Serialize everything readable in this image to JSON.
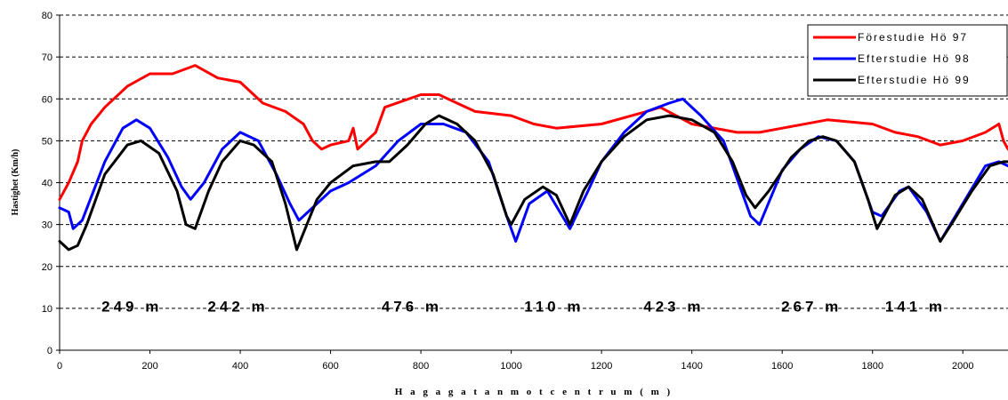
{
  "chart_data": {
    "type": "line",
    "xlabel": "H a g a g a t a n  m o t  c e n t r u m   ( m )",
    "ylabel": "Hastighet (Km/h)",
    "xlim": [
      0,
      2100
    ],
    "ylim": [
      0,
      80
    ],
    "x_ticks": [
      "0",
      "200",
      "400",
      "600",
      "800",
      "1000",
      "1200",
      "1400",
      "1600",
      "1800",
      "2000"
    ],
    "y_ticks": [
      "0",
      "10",
      "20",
      "30",
      "40",
      "50",
      "60",
      "70",
      "80"
    ],
    "grid": "horizontal-dashed",
    "legend_position": "top-right",
    "series": [
      {
        "name": "Förestudie Hö 97",
        "color": "#ff0000",
        "points": [
          [
            0,
            36
          ],
          [
            20,
            40
          ],
          [
            40,
            45
          ],
          [
            50,
            50
          ],
          [
            70,
            54
          ],
          [
            100,
            58
          ],
          [
            150,
            63
          ],
          [
            200,
            66
          ],
          [
            250,
            66
          ],
          [
            300,
            68
          ],
          [
            350,
            65
          ],
          [
            400,
            64
          ],
          [
            450,
            59
          ],
          [
            500,
            57
          ],
          [
            540,
            54
          ],
          [
            560,
            50
          ],
          [
            580,
            48
          ],
          [
            600,
            49
          ],
          [
            640,
            50
          ],
          [
            650,
            53
          ],
          [
            660,
            48
          ],
          [
            700,
            52
          ],
          [
            720,
            58
          ],
          [
            800,
            61
          ],
          [
            840,
            61
          ],
          [
            880,
            59
          ],
          [
            920,
            57
          ],
          [
            1000,
            56
          ],
          [
            1050,
            54
          ],
          [
            1100,
            53
          ],
          [
            1200,
            54
          ],
          [
            1300,
            57
          ],
          [
            1330,
            58
          ],
          [
            1400,
            54
          ],
          [
            1450,
            53
          ],
          [
            1500,
            52
          ],
          [
            1550,
            52
          ],
          [
            1600,
            53
          ],
          [
            1700,
            55
          ],
          [
            1800,
            54
          ],
          [
            1850,
            52
          ],
          [
            1900,
            51
          ],
          [
            1950,
            49
          ],
          [
            2000,
            50
          ],
          [
            2050,
            52
          ],
          [
            2080,
            54
          ],
          [
            2090,
            50
          ],
          [
            2100,
            48
          ]
        ]
      },
      {
        "name": "Efterstudie Hö 98",
        "color": "#0000ff",
        "points": [
          [
            0,
            34
          ],
          [
            20,
            33
          ],
          [
            30,
            29
          ],
          [
            50,
            31
          ],
          [
            100,
            45
          ],
          [
            140,
            53
          ],
          [
            170,
            55
          ],
          [
            200,
            53
          ],
          [
            240,
            46
          ],
          [
            270,
            39
          ],
          [
            290,
            36
          ],
          [
            320,
            40
          ],
          [
            360,
            48
          ],
          [
            400,
            52
          ],
          [
            440,
            50
          ],
          [
            480,
            42
          ],
          [
            510,
            35
          ],
          [
            530,
            31
          ],
          [
            570,
            35
          ],
          [
            600,
            38
          ],
          [
            640,
            40
          ],
          [
            700,
            44
          ],
          [
            750,
            50
          ],
          [
            800,
            54
          ],
          [
            850,
            54
          ],
          [
            900,
            52
          ],
          [
            950,
            45
          ],
          [
            990,
            32
          ],
          [
            1010,
            26
          ],
          [
            1040,
            35
          ],
          [
            1080,
            38
          ],
          [
            1130,
            29
          ],
          [
            1170,
            38
          ],
          [
            1200,
            45
          ],
          [
            1250,
            52
          ],
          [
            1300,
            57
          ],
          [
            1350,
            59
          ],
          [
            1380,
            60
          ],
          [
            1420,
            56
          ],
          [
            1470,
            50
          ],
          [
            1510,
            38
          ],
          [
            1530,
            32
          ],
          [
            1550,
            30
          ],
          [
            1600,
            43
          ],
          [
            1640,
            48
          ],
          [
            1680,
            51
          ],
          [
            1720,
            50
          ],
          [
            1760,
            45
          ],
          [
            1800,
            33
          ],
          [
            1820,
            32
          ],
          [
            1860,
            38
          ],
          [
            1880,
            39
          ],
          [
            1920,
            33
          ],
          [
            1950,
            26
          ],
          [
            2000,
            35
          ],
          [
            2050,
            44
          ],
          [
            2080,
            45
          ],
          [
            2100,
            44
          ]
        ]
      },
      {
        "name": "Efterstudie Hö 99",
        "color": "#000000",
        "points": [
          [
            0,
            26
          ],
          [
            20,
            24
          ],
          [
            40,
            25
          ],
          [
            60,
            30
          ],
          [
            100,
            42
          ],
          [
            150,
            49
          ],
          [
            180,
            50
          ],
          [
            220,
            47
          ],
          [
            260,
            38
          ],
          [
            280,
            30
          ],
          [
            300,
            29
          ],
          [
            330,
            38
          ],
          [
            360,
            45
          ],
          [
            400,
            50
          ],
          [
            430,
            49
          ],
          [
            470,
            45
          ],
          [
            500,
            35
          ],
          [
            525,
            24
          ],
          [
            540,
            28
          ],
          [
            570,
            36
          ],
          [
            600,
            40
          ],
          [
            650,
            44
          ],
          [
            700,
            45
          ],
          [
            730,
            45
          ],
          [
            770,
            49
          ],
          [
            810,
            54
          ],
          [
            840,
            56
          ],
          [
            880,
            54
          ],
          [
            920,
            50
          ],
          [
            960,
            42
          ],
          [
            990,
            32
          ],
          [
            1000,
            30
          ],
          [
            1030,
            36
          ],
          [
            1070,
            39
          ],
          [
            1100,
            37
          ],
          [
            1130,
            30
          ],
          [
            1160,
            38
          ],
          [
            1200,
            45
          ],
          [
            1250,
            51
          ],
          [
            1300,
            55
          ],
          [
            1350,
            56
          ],
          [
            1400,
            55
          ],
          [
            1450,
            52
          ],
          [
            1490,
            45
          ],
          [
            1520,
            37
          ],
          [
            1540,
            34
          ],
          [
            1570,
            38
          ],
          [
            1620,
            46
          ],
          [
            1660,
            50
          ],
          [
            1690,
            51
          ],
          [
            1720,
            50
          ],
          [
            1760,
            45
          ],
          [
            1790,
            36
          ],
          [
            1810,
            29
          ],
          [
            1850,
            37
          ],
          [
            1880,
            39
          ],
          [
            1910,
            36
          ],
          [
            1950,
            26
          ],
          [
            1980,
            31
          ],
          [
            2020,
            38
          ],
          [
            2060,
            44
          ],
          [
            2090,
            45
          ],
          [
            2100,
            45
          ]
        ]
      }
    ],
    "annotations": [
      {
        "text": "249 m",
        "x": 160,
        "y": 10.5
      },
      {
        "text": "242 m",
        "x": 395,
        "y": 10.5
      },
      {
        "text": "476 m",
        "x": 780,
        "y": 10.5
      },
      {
        "text": "110 m",
        "x": 1095,
        "y": 10.5
      },
      {
        "text": "423 m",
        "x": 1360,
        "y": 10.5
      },
      {
        "text": "267 m",
        "x": 1665,
        "y": 10.5
      },
      {
        "text": "141 m",
        "x": 1895,
        "y": 10.5
      }
    ]
  }
}
